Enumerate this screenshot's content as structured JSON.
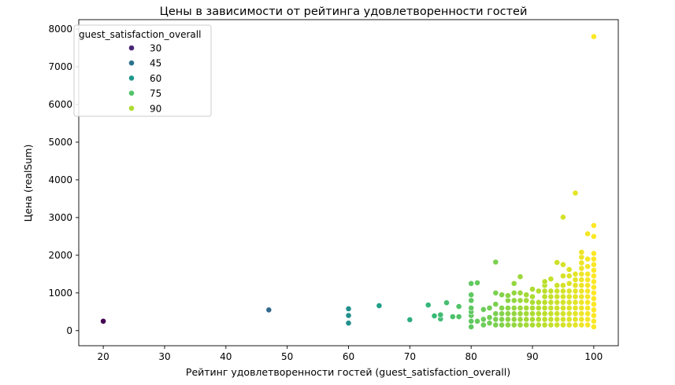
{
  "chart_data": {
    "type": "scatter",
    "title": "Цены в зависимости от рейтинга удовлетворенности гостей",
    "xlabel": "Рейтинг удовлетворенности гостей (guest_satisfaction_overall)",
    "ylabel": "Цена (realSum)",
    "xlim": [
      16,
      104
    ],
    "ylim": [
      -400,
      8250
    ],
    "xticks": [
      20,
      30,
      40,
      50,
      60,
      70,
      80,
      90,
      100
    ],
    "yticks": [
      0,
      1000,
      2000,
      3000,
      4000,
      5000,
      6000,
      7000,
      8000
    ],
    "grid": false,
    "legend": {
      "title": "guest_satisfaction_overall",
      "placement": "top-left",
      "entries": [
        {
          "label": "30",
          "color": "#482576"
        },
        {
          "label": "45",
          "color": "#2c728e"
        },
        {
          "label": "60",
          "color": "#1f988b"
        },
        {
          "label": "75",
          "color": "#52c569"
        },
        {
          "label": "90",
          "color": "#addc30"
        }
      ]
    },
    "hue_range": [
      20,
      100
    ],
    "points": [
      [
        20,
        250
      ],
      [
        47,
        550
      ],
      [
        60,
        200
      ],
      [
        60,
        400
      ],
      [
        60,
        580
      ],
      [
        65,
        660
      ],
      [
        70,
        290
      ],
      [
        73,
        680
      ],
      [
        74,
        390
      ],
      [
        75,
        310
      ],
      [
        75,
        420
      ],
      [
        76,
        740
      ],
      [
        77,
        370
      ],
      [
        78,
        370
      ],
      [
        78,
        640
      ],
      [
        80,
        100
      ],
      [
        80,
        250
      ],
      [
        80,
        400
      ],
      [
        80,
        500
      ],
      [
        80,
        600
      ],
      [
        80,
        800
      ],
      [
        80,
        950
      ],
      [
        80,
        1250
      ],
      [
        81,
        250
      ],
      [
        81,
        1270
      ],
      [
        82,
        150
      ],
      [
        82,
        300
      ],
      [
        82,
        560
      ],
      [
        83,
        200
      ],
      [
        83,
        350
      ],
      [
        83,
        600
      ],
      [
        84,
        150
      ],
      [
        84,
        300
      ],
      [
        84,
        450
      ],
      [
        84,
        700
      ],
      [
        84,
        1000
      ],
      [
        84,
        1820
      ],
      [
        85,
        150
      ],
      [
        85,
        300
      ],
      [
        85,
        450
      ],
      [
        85,
        600
      ],
      [
        85,
        950
      ],
      [
        86,
        150
      ],
      [
        86,
        300
      ],
      [
        86,
        450
      ],
      [
        86,
        600
      ],
      [
        86,
        800
      ],
      [
        86,
        930
      ],
      [
        87,
        150
      ],
      [
        87,
        300
      ],
      [
        87,
        450
      ],
      [
        87,
        600
      ],
      [
        87,
        800
      ],
      [
        87,
        1000
      ],
      [
        87,
        1250
      ],
      [
        88,
        150
      ],
      [
        88,
        300
      ],
      [
        88,
        450
      ],
      [
        88,
        600
      ],
      [
        88,
        800
      ],
      [
        88,
        1000
      ],
      [
        88,
        1430
      ],
      [
        89,
        150
      ],
      [
        89,
        300
      ],
      [
        89,
        450
      ],
      [
        89,
        600
      ],
      [
        89,
        800
      ],
      [
        89,
        950
      ],
      [
        90,
        150
      ],
      [
        90,
        300
      ],
      [
        90,
        450
      ],
      [
        90,
        600
      ],
      [
        90,
        750
      ],
      [
        90,
        900
      ],
      [
        90,
        1100
      ],
      [
        91,
        150
      ],
      [
        91,
        300
      ],
      [
        91,
        450
      ],
      [
        91,
        600
      ],
      [
        91,
        750
      ],
      [
        91,
        1050
      ],
      [
        92,
        150
      ],
      [
        92,
        300
      ],
      [
        92,
        450
      ],
      [
        92,
        600
      ],
      [
        92,
        750
      ],
      [
        92,
        900
      ],
      [
        92,
        1050
      ],
      [
        92,
        1200
      ],
      [
        92,
        1300
      ],
      [
        93,
        150
      ],
      [
        93,
        300
      ],
      [
        93,
        450
      ],
      [
        93,
        600
      ],
      [
        93,
        750
      ],
      [
        93,
        900
      ],
      [
        93,
        1050
      ],
      [
        93,
        1370
      ],
      [
        94,
        150
      ],
      [
        94,
        300
      ],
      [
        94,
        450
      ],
      [
        94,
        600
      ],
      [
        94,
        750
      ],
      [
        94,
        900
      ],
      [
        94,
        1050
      ],
      [
        94,
        1200
      ],
      [
        94,
        1810
      ],
      [
        95,
        150
      ],
      [
        95,
        300
      ],
      [
        95,
        450
      ],
      [
        95,
        600
      ],
      [
        95,
        750
      ],
      [
        95,
        900
      ],
      [
        95,
        1050
      ],
      [
        95,
        1200
      ],
      [
        95,
        1450
      ],
      [
        95,
        1750
      ],
      [
        95,
        3010
      ],
      [
        96,
        150
      ],
      [
        96,
        300
      ],
      [
        96,
        450
      ],
      [
        96,
        600
      ],
      [
        96,
        750
      ],
      [
        96,
        900
      ],
      [
        96,
        1050
      ],
      [
        96,
        1250
      ],
      [
        96,
        1450
      ],
      [
        96,
        1620
      ],
      [
        97,
        150
      ],
      [
        97,
        300
      ],
      [
        97,
        450
      ],
      [
        97,
        600
      ],
      [
        97,
        750
      ],
      [
        97,
        900
      ],
      [
        97,
        1050
      ],
      [
        97,
        1200
      ],
      [
        97,
        1350
      ],
      [
        97,
        1500
      ],
      [
        97,
        3650
      ],
      [
        98,
        150
      ],
      [
        98,
        300
      ],
      [
        98,
        450
      ],
      [
        98,
        600
      ],
      [
        98,
        750
      ],
      [
        98,
        900
      ],
      [
        98,
        1050
      ],
      [
        98,
        1200
      ],
      [
        98,
        1350
      ],
      [
        98,
        1500
      ],
      [
        98,
        1650
      ],
      [
        98,
        1800
      ],
      [
        98,
        1950
      ],
      [
        98,
        2080
      ],
      [
        99,
        150
      ],
      [
        99,
        300
      ],
      [
        99,
        450
      ],
      [
        99,
        600
      ],
      [
        99,
        750
      ],
      [
        99,
        900
      ],
      [
        99,
        1050
      ],
      [
        99,
        1200
      ],
      [
        99,
        1350
      ],
      [
        99,
        1500
      ],
      [
        99,
        1700
      ],
      [
        99,
        1900
      ],
      [
        99,
        2570
      ],
      [
        100,
        100
      ],
      [
        100,
        250
      ],
      [
        100,
        400
      ],
      [
        100,
        550
      ],
      [
        100,
        700
      ],
      [
        100,
        850
      ],
      [
        100,
        1000
      ],
      [
        100,
        1150
      ],
      [
        100,
        1300
      ],
      [
        100,
        1450
      ],
      [
        100,
        1600
      ],
      [
        100,
        1750
      ],
      [
        100,
        1900
      ],
      [
        100,
        2050
      ],
      [
        100,
        2500
      ],
      [
        100,
        2790
      ],
      [
        100,
        7800
      ]
    ]
  }
}
